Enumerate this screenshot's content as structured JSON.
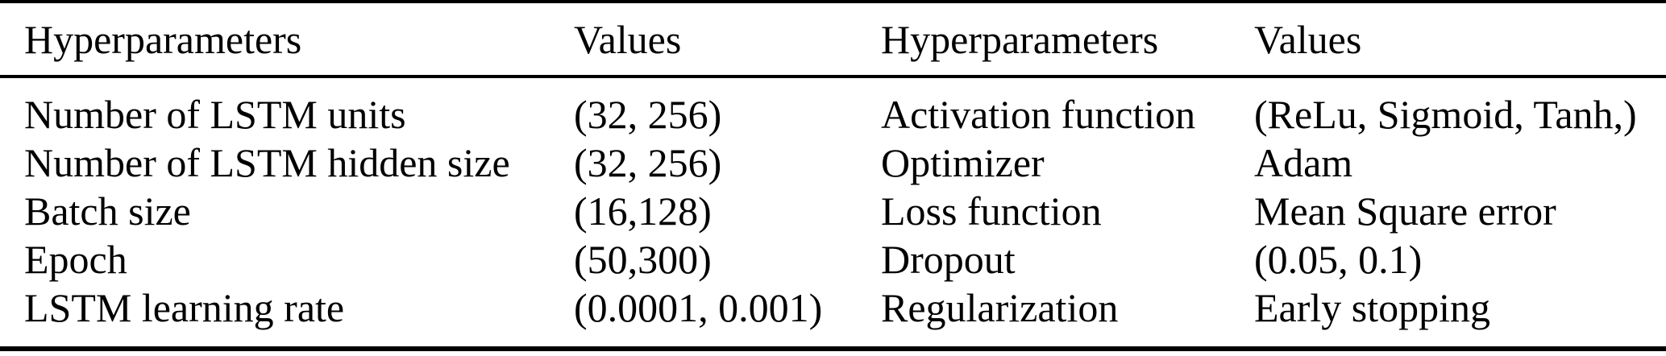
{
  "table": {
    "columns": [
      "Hyperparameters",
      "Values",
      "Hyperparameters",
      "Values"
    ],
    "rows": [
      [
        "Number of LSTM units",
        "(32, 256)",
        "Activation function",
        "(ReLu, Sigmoid, Tanh,)"
      ],
      [
        "Number of LSTM hidden size",
        "(32, 256)",
        "Optimizer",
        "Adam"
      ],
      [
        "Batch size",
        "(16,128)",
        "Loss function",
        "Mean Square error"
      ],
      [
        "Epoch",
        "(50,300)",
        "Dropout",
        "(0.05, 0.1)"
      ],
      [
        "LSTM learning rate",
        "(0.0001, 0.001)",
        "Regularization",
        "Early stopping"
      ]
    ],
    "colors": {
      "text": "#000000",
      "rule": "#000000",
      "background": "#ffffff"
    }
  }
}
